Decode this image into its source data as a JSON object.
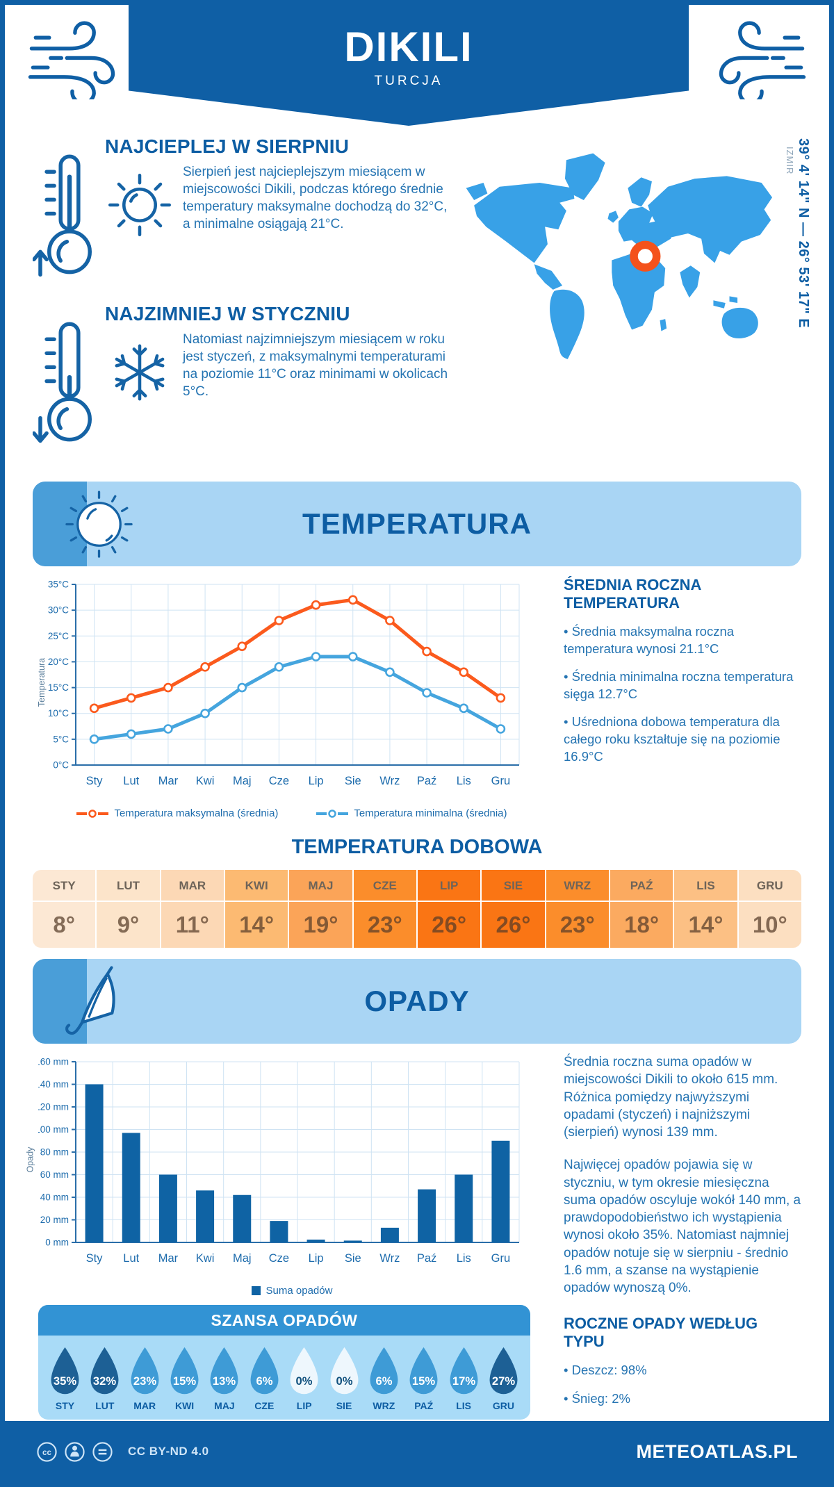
{
  "header": {
    "title": "DIKILI",
    "subtitle": "TURCJA"
  },
  "map": {
    "region_label": "IZMIR",
    "coordinates": "39° 4' 14\" N — 26° 53' 17\" E",
    "land_color": "#38a1e7",
    "marker_color": "#f4521c"
  },
  "intro": {
    "highlights": [
      {
        "title": "NAJCIEPLEJ W SIERPNIU",
        "text": "Sierpień jest najcieplejszym miesiącem w miejscowości Dikili, podczas którego średnie temperatury maksymalne dochodzą do 32°C, a minimalne osiągają 21°C.",
        "icons": [
          "thermometer-up-icon",
          "sun-icon"
        ]
      },
      {
        "title": "NAJZIMNIEJ W STYCZNIU",
        "text": "Natomiast najzimniejszym miesiącem w roku jest styczeń, z maksymalnymi temperaturami na poziomie 11°C oraz minimami w okolicach 5°C.",
        "icons": [
          "thermometer-down-icon",
          "snowflake-icon"
        ]
      }
    ]
  },
  "temperature": {
    "section_title": "TEMPERATURA",
    "summary_title": "ŚREDNIA ROCZNA TEMPERATURA",
    "bullets": [
      "• Średnia maksymalna roczna temperatura wynosi 21.1°C",
      "• Średnia minimalna roczna temperatura sięga 12.7°C",
      "• Uśredniona dobowa temperatura dla całego roku kształtuje się na poziomie 16.9°C"
    ],
    "daily_title": "TEMPERATURA DOBOWA"
  },
  "chart_data": [
    {
      "type": "line",
      "title": "Temperatura",
      "categories": [
        "Sty",
        "Lut",
        "Mar",
        "Kwi",
        "Maj",
        "Cze",
        "Lip",
        "Sie",
        "Wrz",
        "Paź",
        "Lis",
        "Gru"
      ],
      "series": [
        {
          "name": "Temperatura maksymalna (średnia)",
          "color": "#fb5a1d",
          "values": [
            11,
            13,
            15,
            19,
            23,
            28,
            31,
            32,
            28,
            22,
            18,
            13
          ]
        },
        {
          "name": "Temperatura minimalna (średnia)",
          "color": "#45a5de",
          "values": [
            5,
            6,
            7,
            10,
            15,
            19,
            21,
            21,
            18,
            14,
            11,
            7
          ]
        }
      ],
      "ylabel": "Temperatura",
      "ylim": [
        0,
        35
      ],
      "ytick_step": 5,
      "ytick_suffix": "°C",
      "grid": true,
      "legend_position": "bottom"
    },
    {
      "type": "bar",
      "title": "Opady",
      "categories": [
        "Sty",
        "Lut",
        "Mar",
        "Kwi",
        "Maj",
        "Cze",
        "Lip",
        "Sie",
        "Wrz",
        "Paź",
        "Lis",
        "Gru"
      ],
      "values": [
        140,
        97,
        60,
        46,
        42,
        19,
        2.5,
        1.6,
        13,
        47,
        60,
        90
      ],
      "bar_color": "#0f63a4",
      "legend": "Suma opadów",
      "ylabel": "Opady",
      "ylim": [
        0,
        160
      ],
      "ytick_step": 20,
      "ytick_suffix": " mm",
      "grid": true,
      "legend_position": "bottom"
    }
  ],
  "daily_temperature": {
    "months": [
      "STY",
      "LUT",
      "MAR",
      "KWI",
      "MAJ",
      "CZE",
      "LIP",
      "SIE",
      "WRZ",
      "PAŹ",
      "LIS",
      "GRU"
    ],
    "values": [
      "8°",
      "9°",
      "11°",
      "14°",
      "19°",
      "23°",
      "26°",
      "26°",
      "23°",
      "18°",
      "14°",
      "10°"
    ],
    "colors": [
      "#fce8d4",
      "#fce4ca",
      "#fcd8b5",
      "#fcba72",
      "#fba458",
      "#fb8d2b",
      "#fa7514",
      "#fa7514",
      "#fb8d2b",
      "#fbaa60",
      "#fcc084",
      "#fcdfc1"
    ]
  },
  "precipitation": {
    "section_title": "OPADY",
    "paragraphs": [
      "Średnia roczna suma opadów w miejscowości Dikili to około 615 mm. Różnica pomiędzy najwyższymi opadami (styczeń) i najniższymi (sierpień) wynosi 139 mm.",
      "Najwięcej opadów pojawia się w styczniu, w tym okresie miesięczna suma opadów oscyluje wokół 140 mm, a prawdopodobieństwo ich wystąpienia wynosi około 35%. Natomiast najmniej opadów notuje się w sierpniu - średnio 1.6 mm, a szanse na wystąpienie opadów wynoszą 0%."
    ],
    "type_title": "ROCZNE OPADY WEDŁUG TYPU",
    "type_bullets": [
      "• Deszcz: 98%",
      "• Śnieg: 2%"
    ]
  },
  "precip_chance": {
    "title": "SZANSA OPADÓW",
    "items": [
      {
        "month": "STY",
        "value": "35%",
        "color": "#1d6095",
        "text_color": "#ffffff"
      },
      {
        "month": "LUT",
        "value": "32%",
        "color": "#1d6095",
        "text_color": "#ffffff"
      },
      {
        "month": "MAR",
        "value": "23%",
        "color": "#3e9bd6",
        "text_color": "#ffffff"
      },
      {
        "month": "KWI",
        "value": "15%",
        "color": "#3e9bd6",
        "text_color": "#ffffff"
      },
      {
        "month": "MAJ",
        "value": "13%",
        "color": "#3e9bd6",
        "text_color": "#ffffff"
      },
      {
        "month": "CZE",
        "value": "6%",
        "color": "#3e9bd6",
        "text_color": "#ffffff"
      },
      {
        "month": "LIP",
        "value": "0%",
        "color": "#eef7fd",
        "text_color": "#11517e"
      },
      {
        "month": "SIE",
        "value": "0%",
        "color": "#eef7fd",
        "text_color": "#11517e"
      },
      {
        "month": "WRZ",
        "value": "6%",
        "color": "#3e9bd6",
        "text_color": "#ffffff"
      },
      {
        "month": "PAŹ",
        "value": "15%",
        "color": "#3e9bd6",
        "text_color": "#ffffff"
      },
      {
        "month": "LIS",
        "value": "17%",
        "color": "#3e9bd6",
        "text_color": "#ffffff"
      },
      {
        "month": "GRU",
        "value": "27%",
        "color": "#1d6095",
        "text_color": "#ffffff"
      }
    ]
  },
  "footer": {
    "license": "CC BY-ND 4.0",
    "brand": "METEOATLAS.PL"
  }
}
